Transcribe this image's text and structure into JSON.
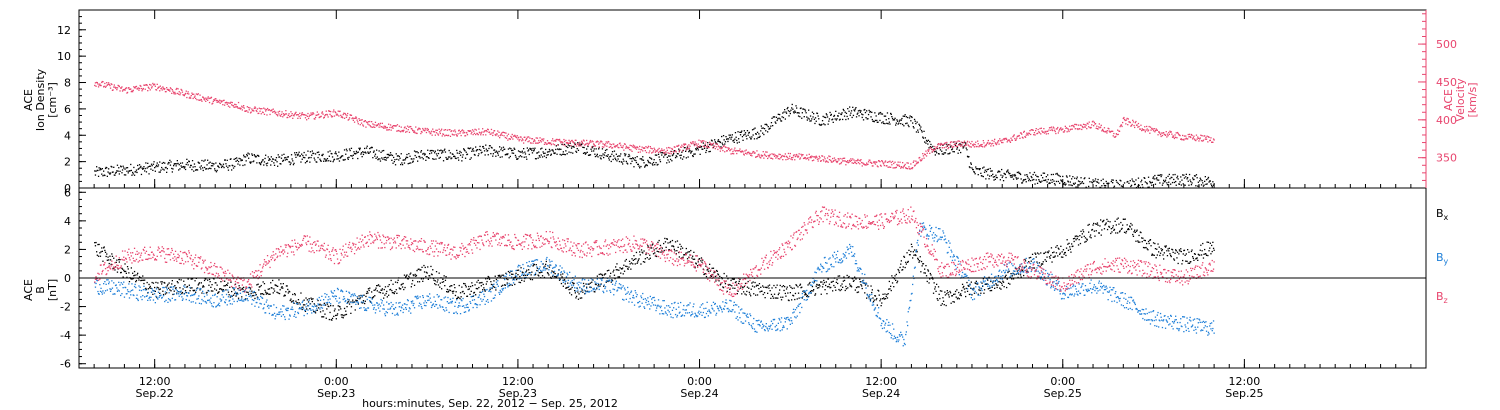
{
  "chart_data": [
    {
      "type": "scatter",
      "panel": "top",
      "left_axis": {
        "label_lines": [
          "ACE",
          "Ion Density",
          "[cm⁻³]"
        ],
        "ylim": [
          0,
          13.5
        ],
        "ticks": [
          0,
          2,
          4,
          6,
          8,
          10,
          12
        ],
        "color": "#000000"
      },
      "right_axis": {
        "label_lines": [
          "ACE",
          "Velocity",
          "[km/s]"
        ],
        "ylim": [
          310,
          545
        ],
        "ticks": [
          350,
          400,
          450,
          500
        ],
        "color": "#e8456e"
      },
      "series": [
        {
          "axis": "left",
          "color": "#000000",
          "points": [
            [
              "2012-09-22T08:00",
              1.2
            ],
            [
              "2012-09-22T10:00",
              1.4
            ],
            [
              "2012-09-22T12:00",
              1.6
            ],
            [
              "2012-09-22T14:00",
              1.8
            ],
            [
              "2012-09-22T16:00",
              1.7
            ],
            [
              "2012-09-22T17:30",
              1.9
            ],
            [
              "2012-09-22T18:00",
              2.3
            ],
            [
              "2012-09-22T20:00",
              2.1
            ],
            [
              "2012-09-22T22:00",
              2.4
            ],
            [
              "2012-09-23T00:00",
              2.5
            ],
            [
              "2012-09-23T02:00",
              2.8
            ],
            [
              "2012-09-23T04:00",
              2.2
            ],
            [
              "2012-09-23T06:00",
              2.6
            ],
            [
              "2012-09-23T08:00",
              2.5
            ],
            [
              "2012-09-23T10:00",
              2.9
            ],
            [
              "2012-09-23T12:00",
              2.6
            ],
            [
              "2012-09-23T14:00",
              2.8
            ],
            [
              "2012-09-23T16:00",
              3.2
            ],
            [
              "2012-09-23T18:00",
              2.5
            ],
            [
              "2012-09-23T20:00",
              2.0
            ],
            [
              "2012-09-23T22:00",
              2.4
            ],
            [
              "2012-09-24T00:00",
              3.0
            ],
            [
              "2012-09-24T02:00",
              3.8
            ],
            [
              "2012-09-24T04:00",
              4.3
            ],
            [
              "2012-09-24T06:00",
              6.0
            ],
            [
              "2012-09-24T08:00",
              5.2
            ],
            [
              "2012-09-24T10:00",
              5.8
            ],
            [
              "2012-09-24T12:00",
              5.4
            ],
            [
              "2012-09-24T14:00",
              5.1
            ],
            [
              "2012-09-24T15:30",
              2.9
            ],
            [
              "2012-09-24T17:30",
              3.2
            ],
            [
              "2012-09-24T18:00",
              1.3
            ],
            [
              "2012-09-24T20:00",
              1.0
            ],
            [
              "2012-09-24T22:00",
              0.8
            ],
            [
              "2012-09-25T00:00",
              0.7
            ],
            [
              "2012-09-25T02:00",
              0.3
            ],
            [
              "2012-09-25T04:00",
              0.2
            ],
            [
              "2012-09-25T06:00",
              0.6
            ],
            [
              "2012-09-25T08:00",
              0.7
            ],
            [
              "2012-09-25T10:00",
              0.5
            ]
          ]
        },
        {
          "axis": "right",
          "color": "#e8456e",
          "points": [
            [
              "2012-09-22T08:00",
              450
            ],
            [
              "2012-09-22T10:00",
              440
            ],
            [
              "2012-09-22T12:00",
              445
            ],
            [
              "2012-09-22T14:00",
              435
            ],
            [
              "2012-09-22T16:00",
              425
            ],
            [
              "2012-09-22T17:30",
              420
            ],
            [
              "2012-09-22T18:00",
              415
            ],
            [
              "2012-09-22T20:00",
              410
            ],
            [
              "2012-09-22T22:00",
              405
            ],
            [
              "2012-09-23T00:00",
              410
            ],
            [
              "2012-09-23T02:00",
              395
            ],
            [
              "2012-09-23T04:00",
              390
            ],
            [
              "2012-09-23T06:00",
              385
            ],
            [
              "2012-09-23T08:00",
              383
            ],
            [
              "2012-09-23T10:00",
              385
            ],
            [
              "2012-09-23T12:00",
              375
            ],
            [
              "2012-09-23T14:00",
              372
            ],
            [
              "2012-09-23T16:00",
              370
            ],
            [
              "2012-09-23T18:00",
              368
            ],
            [
              "2012-09-23T20:00",
              362
            ],
            [
              "2012-09-23T22:00",
              360
            ],
            [
              "2012-09-24T00:00",
              370
            ],
            [
              "2012-09-24T02:00",
              360
            ],
            [
              "2012-09-24T04:00",
              355
            ],
            [
              "2012-09-24T06:00",
              352
            ],
            [
              "2012-09-24T08:00",
              350
            ],
            [
              "2012-09-24T10:00",
              345
            ],
            [
              "2012-09-24T12:00",
              343
            ],
            [
              "2012-09-24T14:00",
              340
            ],
            [
              "2012-09-24T15:30",
              365
            ],
            [
              "2012-09-24T17:30",
              370
            ],
            [
              "2012-09-24T18:00",
              368
            ],
            [
              "2012-09-24T20:00",
              372
            ],
            [
              "2012-09-24T22:00",
              385
            ],
            [
              "2012-09-25T00:00",
              388
            ],
            [
              "2012-09-25T02:00",
              395
            ],
            [
              "2012-09-25T03:30",
              380
            ],
            [
              "2012-09-25T04:00",
              400
            ],
            [
              "2012-09-25T06:00",
              385
            ],
            [
              "2012-09-25T08:00",
              378
            ],
            [
              "2012-09-25T10:00",
              375
            ]
          ]
        }
      ]
    },
    {
      "type": "scatter",
      "panel": "bottom",
      "left_axis": {
        "label_lines": [
          "ACE",
          "B",
          "[nT]"
        ],
        "ylim": [
          -6.3,
          6.3
        ],
        "ticks": [
          -6,
          -4,
          -2,
          0,
          2,
          4,
          6
        ],
        "color": "#000000"
      },
      "zero_line": true,
      "series": [
        {
          "name": "Bx",
          "color": "#000000",
          "points": [
            [
              "2012-09-22T08:00",
              2.2
            ],
            [
              "2012-09-22T10:00",
              0.5
            ],
            [
              "2012-09-22T12:00",
              -0.8
            ],
            [
              "2012-09-22T14:00",
              -0.5
            ],
            [
              "2012-09-22T16:00",
              -0.5
            ],
            [
              "2012-09-22T18:00",
              -1.0
            ],
            [
              "2012-09-22T20:00",
              -0.5
            ],
            [
              "2012-09-22T22:00",
              -1.8
            ],
            [
              "2012-09-23T00:00",
              -2.5
            ],
            [
              "2012-09-23T02:00",
              -1.2
            ],
            [
              "2012-09-23T04:00",
              -0.5
            ],
            [
              "2012-09-23T06:00",
              0.5
            ],
            [
              "2012-09-23T08:00",
              -1.0
            ],
            [
              "2012-09-23T10:00",
              -0.4
            ],
            [
              "2012-09-23T12:00",
              0.2
            ],
            [
              "2012-09-23T14:00",
              0.7
            ],
            [
              "2012-09-23T16:00",
              -1.0
            ],
            [
              "2012-09-23T18:00",
              0.2
            ],
            [
              "2012-09-23T20:00",
              1.5
            ],
            [
              "2012-09-23T22:00",
              2.5
            ],
            [
              "2012-09-24T00:00",
              1.0
            ],
            [
              "2012-09-24T02:00",
              -0.5
            ],
            [
              "2012-09-24T04:00",
              -0.8
            ],
            [
              "2012-09-24T06:00",
              -1.0
            ],
            [
              "2012-09-24T08:00",
              -0.6
            ],
            [
              "2012-09-24T10:00",
              -0.2
            ],
            [
              "2012-09-24T12:00",
              -1.5
            ],
            [
              "2012-09-24T14:00",
              2.0
            ],
            [
              "2012-09-24T16:00",
              -1.5
            ],
            [
              "2012-09-24T18:00",
              -0.6
            ],
            [
              "2012-09-24T20:00",
              -0.3
            ],
            [
              "2012-09-24T22:00",
              1.2
            ],
            [
              "2012-09-25T00:00",
              2.0
            ],
            [
              "2012-09-25T02:00",
              3.5
            ],
            [
              "2012-09-25T04:00",
              3.8
            ],
            [
              "2012-09-25T06:00",
              2.0
            ],
            [
              "2012-09-25T08:00",
              1.5
            ],
            [
              "2012-09-25T10:00",
              2.2
            ]
          ]
        },
        {
          "name": "By",
          "color": "#1e7fd8",
          "points": [
            [
              "2012-09-22T08:00",
              -0.5
            ],
            [
              "2012-09-22T10:00",
              -0.8
            ],
            [
              "2012-09-22T12:00",
              -1.2
            ],
            [
              "2012-09-22T14:00",
              -1.0
            ],
            [
              "2012-09-22T16:00",
              -1.5
            ],
            [
              "2012-09-22T18:00",
              -1.0
            ],
            [
              "2012-09-22T20:00",
              -2.5
            ],
            [
              "2012-09-22T22:00",
              -2.0
            ],
            [
              "2012-09-23T00:00",
              -1.2
            ],
            [
              "2012-09-23T02:00",
              -1.8
            ],
            [
              "2012-09-23T04:00",
              -2.2
            ],
            [
              "2012-09-23T06:00",
              -1.5
            ],
            [
              "2012-09-23T08:00",
              -2.0
            ],
            [
              "2012-09-23T10:00",
              -1.2
            ],
            [
              "2012-09-23T12:00",
              0.5
            ],
            [
              "2012-09-23T14:00",
              1.0
            ],
            [
              "2012-09-23T16:00",
              -0.5
            ],
            [
              "2012-09-23T18:00",
              -0.5
            ],
            [
              "2012-09-23T20:00",
              -1.5
            ],
            [
              "2012-09-23T22:00",
              -2.2
            ],
            [
              "2012-09-24T00:00",
              -2.2
            ],
            [
              "2012-09-24T02:00",
              -2.0
            ],
            [
              "2012-09-24T04:00",
              -3.5
            ],
            [
              "2012-09-24T06:00",
              -3.0
            ],
            [
              "2012-09-24T08:00",
              0.8
            ],
            [
              "2012-09-24T10:00",
              2.0
            ],
            [
              "2012-09-24T12:00",
              -3.0
            ],
            [
              "2012-09-24T13:30",
              -4.5
            ],
            [
              "2012-09-24T14:30",
              3.5
            ],
            [
              "2012-09-24T16:00",
              3.0
            ],
            [
              "2012-09-24T18:00",
              -1.0
            ],
            [
              "2012-09-24T20:00",
              0.5
            ],
            [
              "2012-09-24T22:00",
              1.0
            ],
            [
              "2012-09-25T00:00",
              -1.0
            ],
            [
              "2012-09-25T02:00",
              -0.5
            ],
            [
              "2012-09-25T04:00",
              -1.5
            ],
            [
              "2012-09-25T06:00",
              -2.8
            ],
            [
              "2012-09-25T08:00",
              -3.2
            ],
            [
              "2012-09-25T10:00",
              -3.5
            ]
          ]
        },
        {
          "name": "Bz",
          "color": "#e8456e",
          "points": [
            [
              "2012-09-22T08:00",
              0.2
            ],
            [
              "2012-09-22T10:00",
              1.5
            ],
            [
              "2012-09-22T12:00",
              1.8
            ],
            [
              "2012-09-22T14:00",
              1.5
            ],
            [
              "2012-09-22T16:00",
              0.5
            ],
            [
              "2012-09-22T18:00",
              -0.5
            ],
            [
              "2012-09-22T20:00",
              1.8
            ],
            [
              "2012-09-22T22:00",
              2.5
            ],
            [
              "2012-09-23T00:00",
              1.5
            ],
            [
              "2012-09-23T02:00",
              2.8
            ],
            [
              "2012-09-23T04:00",
              2.5
            ],
            [
              "2012-09-23T06:00",
              2.2
            ],
            [
              "2012-09-23T08:00",
              1.8
            ],
            [
              "2012-09-23T10:00",
              2.8
            ],
            [
              "2012-09-23T12:00",
              2.5
            ],
            [
              "2012-09-23T14:00",
              2.8
            ],
            [
              "2012-09-23T16:00",
              2.0
            ],
            [
              "2012-09-23T18:00",
              2.2
            ],
            [
              "2012-09-23T20:00",
              2.5
            ],
            [
              "2012-09-23T22:00",
              1.5
            ],
            [
              "2012-09-24T00:00",
              1.0
            ],
            [
              "2012-09-24T02:00",
              -1.0
            ],
            [
              "2012-09-24T04:00",
              0.8
            ],
            [
              "2012-09-24T06:00",
              2.5
            ],
            [
              "2012-09-24T08:00",
              4.5
            ],
            [
              "2012-09-24T10:00",
              4.0
            ],
            [
              "2012-09-24T12:00",
              4.0
            ],
            [
              "2012-09-24T14:00",
              4.5
            ],
            [
              "2012-09-24T16:00",
              0.5
            ],
            [
              "2012-09-24T18:00",
              1.0
            ],
            [
              "2012-09-24T20:00",
              1.5
            ],
            [
              "2012-09-24T22:00",
              0.5
            ],
            [
              "2012-09-25T00:00",
              -0.5
            ],
            [
              "2012-09-25T02:00",
              0.8
            ],
            [
              "2012-09-25T04:00",
              1.0
            ],
            [
              "2012-09-25T06:00",
              0.5
            ],
            [
              "2012-09-25T08:00",
              0.0
            ],
            [
              "2012-09-25T10:00",
              1.0
            ]
          ]
        }
      ]
    }
  ],
  "x_axis": {
    "range": [
      "2012-09-22T07:00",
      "2012-09-26T00:00"
    ],
    "ticks": [
      {
        "t": "2012-09-22T12:00",
        "time": "12:00",
        "date": "Sep.22"
      },
      {
        "t": "2012-09-23T00:00",
        "time": "0:00",
        "date": "Sep.23"
      },
      {
        "t": "2012-09-23T12:00",
        "time": "12:00",
        "date": "Sep.23"
      },
      {
        "t": "2012-09-24T00:00",
        "time": "0:00",
        "date": "Sep.24"
      },
      {
        "t": "2012-09-24T12:00",
        "time": "12:00",
        "date": "Sep.24"
      },
      {
        "t": "2012-09-25T00:00",
        "time": "0:00",
        "date": "Sep.25"
      },
      {
        "t": "2012-09-25T12:00",
        "time": "12:00",
        "date": "Sep.25"
      }
    ],
    "label": "hours:minutes, Sep. 22, 2012 − Sep. 25, 2012"
  }
}
